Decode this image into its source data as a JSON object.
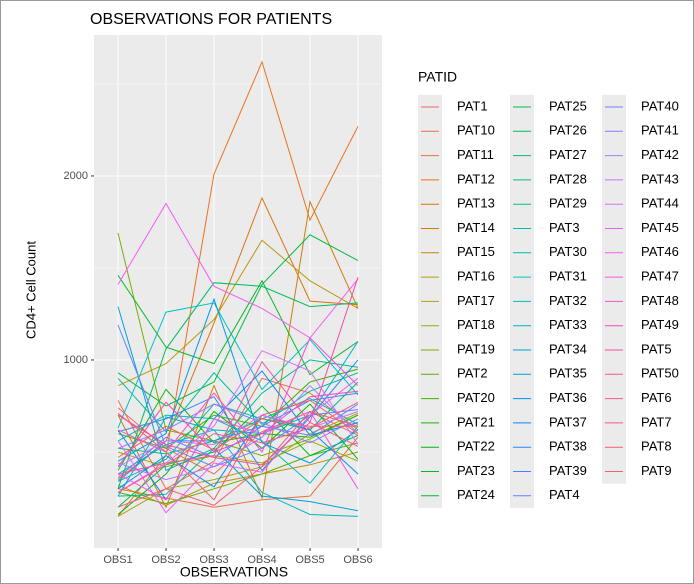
{
  "chart_data": {
    "type": "line",
    "title": "OBSERVATIONS FOR PATIENTS",
    "xlabel": "OBSERVATIONS",
    "ylabel": "CD4+ Cell Count",
    "legend_title": "PATID",
    "categories": [
      "OBS1",
      "OBS2",
      "OBS3",
      "OBS4",
      "OBS5",
      "OBS6"
    ],
    "ylim": [
      -22,
      2766
    ],
    "yticks": [
      1000,
      2000
    ],
    "y_minor_ticks": [
      500,
      1500,
      2500
    ],
    "grid": true,
    "legend_position": "right",
    "series": [
      {
        "name": "PAT1",
        "color": "hsl(3,80%,66%)",
        "values": [
          740,
          520,
          380,
          610,
          720,
          590
        ]
      },
      {
        "name": "PAT10",
        "color": "hsl(10,80%,63%)",
        "values": [
          780,
          300,
          450,
          900,
          820,
          620
        ]
      },
      {
        "name": "PAT11",
        "color": "hsl(17,80%,58%)",
        "values": [
          300,
          250,
          200,
          240,
          260,
          580
        ]
      },
      {
        "name": "PAT12",
        "color": "hsl(24,85%,52%)",
        "values": [
          150,
          480,
          2010,
          2620,
          1760,
          2270
        ]
      },
      {
        "name": "PAT13",
        "color": "hsl(30,90%,45%)",
        "values": [
          350,
          560,
          1200,
          1880,
          1320,
          1300
        ]
      },
      {
        "name": "PAT14",
        "color": "hsl(36,90%,42%)",
        "values": [
          700,
          200,
          860,
          250,
          1860,
          1280
        ]
      },
      {
        "name": "PAT15",
        "color": "hsl(42,90%,40%)",
        "values": [
          320,
          210,
          330,
          380,
          430,
          500
        ]
      },
      {
        "name": "PAT16",
        "color": "hsl(50,90%,38%)",
        "values": [
          860,
          980,
          1220,
          1650,
          1430,
          1280
        ]
      },
      {
        "name": "PAT17",
        "color": "hsl(58,90%,35%)",
        "values": [
          150,
          300,
          350,
          420,
          600,
          710
        ]
      },
      {
        "name": "PAT18",
        "color": "hsl(67,95%,35%)",
        "values": [
          500,
          420,
          480,
          440,
          560,
          450
        ]
      },
      {
        "name": "PAT19",
        "color": "hsl(77,100%,34%)",
        "values": [
          1690,
          620,
          560,
          480,
          570,
          700
        ]
      },
      {
        "name": "PAT2",
        "color": "hsl(87,100%,34%)",
        "values": [
          280,
          220,
          300,
          380,
          480,
          550
        ]
      },
      {
        "name": "PAT20",
        "color": "hsl(100,100%,35%)",
        "values": [
          600,
          520,
          700,
          640,
          880,
          950
        ]
      },
      {
        "name": "PAT21",
        "color": "hsl(112,90%,37%)",
        "values": [
          400,
          840,
          550,
          600,
          580,
          700
        ]
      },
      {
        "name": "PAT22",
        "color": "hsl(122,90%,37%)",
        "values": [
          160,
          380,
          720,
          520,
          760,
          460
        ]
      },
      {
        "name": "PAT23",
        "color": "hsl(130,95%,37%)",
        "values": [
          1460,
          1070,
          980,
          1430,
          920,
          1100
        ]
      },
      {
        "name": "PAT24",
        "color": "hsl(135,100%,37%)",
        "values": [
          200,
          430,
          500,
          750,
          480,
          590
        ]
      },
      {
        "name": "PAT25",
        "color": "hsl(140,100%,37%)",
        "values": [
          930,
          750,
          880,
          1410,
          1680,
          1540
        ]
      },
      {
        "name": "PAT26",
        "color": "hsl(148,100%,37%)",
        "values": [
          300,
          1060,
          1420,
          1400,
          1290,
          1310
        ]
      },
      {
        "name": "PAT27",
        "color": "hsl(155,100%,37%)",
        "values": [
          520,
          490,
          560,
          680,
          620,
          880
        ]
      },
      {
        "name": "PAT28",
        "color": "hsl(162,100%,37%)",
        "values": [
          260,
          270,
          520,
          820,
          1000,
          960
        ]
      },
      {
        "name": "PAT29",
        "color": "hsl(168,100%,37%)",
        "values": [
          900,
          610,
          930,
          650,
          830,
          930
        ]
      },
      {
        "name": "PAT3",
        "color": "hsl(173,100%,37%)",
        "values": [
          340,
          460,
          760,
          680,
          790,
          650
        ]
      },
      {
        "name": "PAT30",
        "color": "hsl(177,100%,37%)",
        "values": [
          560,
          700,
          680,
          560,
          330,
          640
        ]
      },
      {
        "name": "PAT31",
        "color": "hsl(180,100%,38%)",
        "values": [
          630,
          1260,
          1310,
          840,
          1110,
          810
        ]
      },
      {
        "name": "PAT32",
        "color": "hsl(183,100%,38%)",
        "values": [
          380,
          540,
          620,
          280,
          160,
          150
        ]
      },
      {
        "name": "PAT33",
        "color": "hsl(188,100%,40%)",
        "values": [
          260,
          690,
          620,
          600,
          700,
          1100
        ]
      },
      {
        "name": "PAT34",
        "color": "hsl(195,100%,42%)",
        "values": [
          1290,
          400,
          520,
          260,
          230,
          180
        ]
      },
      {
        "name": "PAT35",
        "color": "hsl(200,100%,45%)",
        "values": [
          450,
          600,
          1330,
          550,
          440,
          620
        ]
      },
      {
        "name": "PAT36",
        "color": "hsl(205,100%,48%)",
        "values": [
          300,
          480,
          310,
          700,
          620,
          380
        ]
      },
      {
        "name": "PAT37",
        "color": "hsl(210,100%,52%)",
        "values": [
          620,
          240,
          680,
          940,
          590,
          660
        ]
      },
      {
        "name": "PAT38",
        "color": "hsl(214,100%,58%)",
        "values": [
          610,
          680,
          800,
          400,
          690,
          1000
        ]
      },
      {
        "name": "PAT39",
        "color": "hsl(217,100%,62%)",
        "values": [
          340,
          560,
          560,
          640,
          780,
          820
        ]
      },
      {
        "name": "PAT4",
        "color": "hsl(225,100%,68%)",
        "values": [
          1190,
          530,
          420,
          520,
          700,
          730
        ]
      },
      {
        "name": "PAT40",
        "color": "hsl(235,100%,72%)",
        "values": [
          360,
          580,
          470,
          640,
          590,
          760
        ]
      },
      {
        "name": "PAT41",
        "color": "hsl(250,100%,74%)",
        "values": [
          520,
          620,
          760,
          660,
          550,
          680
        ]
      },
      {
        "name": "PAT42",
        "color": "hsl(262,100%,74%)",
        "values": [
          440,
          350,
          420,
          580,
          860,
          600
        ]
      },
      {
        "name": "PAT43",
        "color": "hsl(272,100%,74%)",
        "values": [
          420,
          560,
          540,
          700,
          630,
          720
        ]
      },
      {
        "name": "PAT44",
        "color": "hsl(283,100%,72%)",
        "values": [
          280,
          440,
          640,
          1050,
          940,
          540
        ]
      },
      {
        "name": "PAT45",
        "color": "hsl(292,95%,68%)",
        "values": [
          560,
          170,
          440,
          390,
          700,
          900
        ]
      },
      {
        "name": "PAT46",
        "color": "hsl(300,90%,66%)",
        "values": [
          1410,
          1850,
          1400,
          1280,
          1120,
          1440
        ]
      },
      {
        "name": "PAT47",
        "color": "hsl(306,90%,65%)",
        "values": [
          380,
          240,
          680,
          600,
          720,
          300
        ]
      },
      {
        "name": "PAT48",
        "color": "hsl(312,85%,63%)",
        "values": [
          620,
          500,
          820,
          500,
          1120,
          860
        ]
      },
      {
        "name": "PAT49",
        "color": "hsl(320,85%,62%)",
        "values": [
          420,
          770,
          500,
          600,
          800,
          830
        ]
      },
      {
        "name": "PAT5",
        "color": "hsl(328,85%,62%)",
        "values": [
          700,
          540,
          470,
          430,
          660,
          1450
        ]
      },
      {
        "name": "PAT50",
        "color": "hsl(335,85%,64%)",
        "values": [
          380,
          440,
          480,
          990,
          660,
          530
        ]
      },
      {
        "name": "PAT6",
        "color": "hsl(342,85%,65%)",
        "values": [
          280,
          430,
          600,
          550,
          630,
          770
        ]
      },
      {
        "name": "PAT7",
        "color": "hsl(348,85%,65%)",
        "values": [
          200,
          300,
          210,
          420,
          720,
          640
        ]
      },
      {
        "name": "PAT8",
        "color": "hsl(354,85%,66%)",
        "values": [
          710,
          500,
          240,
          700,
          780,
          600
        ]
      },
      {
        "name": "PAT9",
        "color": "hsl(0,80%,66%)",
        "values": [
          470,
          640,
          510,
          680,
          640,
          640
        ]
      }
    ]
  }
}
